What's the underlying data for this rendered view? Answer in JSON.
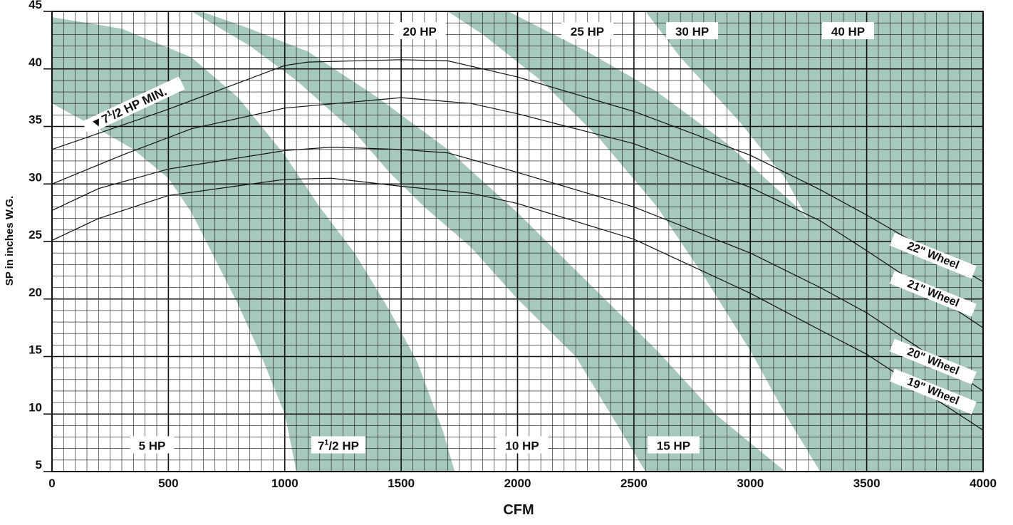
{
  "chart_data": {
    "type": "line",
    "xlabel": "CFM",
    "ylabel": "SP in inches W.G.",
    "xlim": [
      0,
      4000
    ],
    "ylim": [
      5,
      45
    ],
    "x_ticks": [
      0,
      500,
      1000,
      1500,
      2000,
      2500,
      3000,
      3500,
      4000
    ],
    "y_ticks": [
      5,
      10,
      15,
      20,
      25,
      30,
      35,
      40,
      45
    ],
    "grid": true,
    "band_color": "#a7c8be",
    "series": [
      {
        "name": "22\" Wheel",
        "label_x": 3780,
        "label_y": 23.5,
        "label_angle": 22,
        "points": [
          [
            0,
            33
          ],
          [
            500,
            36.5
          ],
          [
            1000,
            40.3
          ],
          [
            1100,
            40.6
          ],
          [
            1500,
            40.8
          ],
          [
            1700,
            40.7
          ],
          [
            2000,
            39.3
          ],
          [
            2500,
            36.3
          ],
          [
            3000,
            32.5
          ],
          [
            3300,
            29.5
          ],
          [
            3500,
            27.3
          ],
          [
            4000,
            21.5
          ]
        ]
      },
      {
        "name": "21\" Wheel",
        "label_x": 3780,
        "label_y": 20.2,
        "label_angle": 22,
        "points": [
          [
            0,
            30
          ],
          [
            300,
            32.5
          ],
          [
            600,
            34.8
          ],
          [
            1000,
            36.6
          ],
          [
            1500,
            37.5
          ],
          [
            1800,
            37
          ],
          [
            2000,
            36.1
          ],
          [
            2500,
            33.5
          ],
          [
            3000,
            29.7
          ],
          [
            3300,
            26.8
          ],
          [
            3500,
            24.2
          ],
          [
            4000,
            17.5
          ]
        ]
      },
      {
        "name": "20\" Wheel",
        "label_x": 3780,
        "label_y": 14.3,
        "label_angle": 22,
        "points": [
          [
            0,
            27.7
          ],
          [
            200,
            29.6
          ],
          [
            500,
            31.3
          ],
          [
            1000,
            32.9
          ],
          [
            1200,
            33.2
          ],
          [
            1500,
            33
          ],
          [
            1700,
            32.7
          ],
          [
            2000,
            31
          ],
          [
            2500,
            28
          ],
          [
            3000,
            24
          ],
          [
            3300,
            21
          ],
          [
            3500,
            18.8
          ],
          [
            4000,
            12
          ]
        ]
      },
      {
        "name": "19\" Wheel",
        "label_x": 3780,
        "label_y": 11.7,
        "label_angle": 22,
        "points": [
          [
            0,
            25.1
          ],
          [
            200,
            27
          ],
          [
            500,
            29
          ],
          [
            1000,
            30.4
          ],
          [
            1200,
            30.5
          ],
          [
            1500,
            29.8
          ],
          [
            1800,
            29.2
          ],
          [
            2000,
            28.3
          ],
          [
            2500,
            25.2
          ],
          [
            3000,
            20.5
          ],
          [
            3300,
            17.3
          ],
          [
            3500,
            15.2
          ],
          [
            4000,
            8.6
          ]
        ]
      }
    ],
    "hp_bands": [
      {
        "name": "7½ HP",
        "outer": [
          [
            0,
            44.5
          ],
          [
            300,
            43.5
          ],
          [
            600,
            41
          ],
          [
            800,
            37.5
          ],
          [
            1000,
            32.5
          ],
          [
            1150,
            28
          ],
          [
            1300,
            24
          ],
          [
            1450,
            19
          ],
          [
            1570,
            14.5
          ],
          [
            1680,
            8.5
          ],
          [
            1730,
            5
          ]
        ],
        "inner": [
          [
            1050,
            5
          ],
          [
            1000,
            10
          ],
          [
            900,
            15
          ],
          [
            800,
            19.5
          ],
          [
            700,
            23.5
          ],
          [
            600,
            27.5
          ],
          [
            500,
            30.5
          ],
          [
            350,
            33
          ],
          [
            180,
            35
          ],
          [
            0,
            37
          ]
        ]
      },
      {
        "name": "15 HP",
        "outer": [
          [
            640,
            45
          ],
          [
            850,
            43.5
          ],
          [
            1100,
            41.5
          ],
          [
            1400,
            37.5
          ],
          [
            1700,
            33
          ],
          [
            2000,
            27.5
          ],
          [
            2300,
            21.5
          ],
          [
            2600,
            15.5
          ],
          [
            2850,
            10
          ],
          [
            3150,
            5
          ]
        ],
        "inner": [
          [
            2550,
            5
          ],
          [
            2400,
            10
          ],
          [
            2250,
            15
          ],
          [
            2000,
            20
          ],
          [
            1800,
            24.5
          ],
          [
            1600,
            28
          ],
          [
            1450,
            31
          ],
          [
            1300,
            34.5
          ],
          [
            1050,
            39
          ],
          [
            850,
            42
          ],
          [
            600,
            45
          ]
        ]
      },
      {
        "name": "30 HP",
        "outer": [
          [
            1960,
            45
          ],
          [
            2300,
            41.5
          ],
          [
            2600,
            38
          ],
          [
            2900,
            33.5
          ],
          [
            3200,
            28
          ],
          [
            3450,
            22.5
          ],
          [
            3700,
            15.5
          ],
          [
            3850,
            10
          ],
          [
            3950,
            5
          ]
        ],
        "inner": [
          [
            3300,
            5
          ],
          [
            3150,
            10
          ],
          [
            3000,
            15.5
          ],
          [
            2800,
            22
          ],
          [
            2600,
            28
          ],
          [
            2350,
            34
          ],
          [
            2100,
            39
          ],
          [
            1850,
            43
          ],
          [
            1700,
            45
          ]
        ]
      },
      {
        "name": "40 HP",
        "outer": [
          [
            4000,
            45
          ],
          [
            4000,
            5
          ]
        ],
        "inner": [
          [
            3800,
            5
          ],
          [
            3650,
            10
          ],
          [
            3550,
            14
          ],
          [
            3430,
            20
          ],
          [
            3300,
            25
          ],
          [
            3150,
            30.5
          ],
          [
            2950,
            35.5
          ],
          [
            2700,
            41
          ],
          [
            2550,
            45
          ]
        ]
      }
    ],
    "annotations": [
      {
        "text": "20 HP",
        "x": 1580,
        "y": 43.2
      },
      {
        "text": "25 HP",
        "x": 2300,
        "y": 43.2
      },
      {
        "text": "30 HP",
        "x": 2750,
        "y": 43.2
      },
      {
        "text": "40 HP",
        "x": 3420,
        "y": 43.2
      },
      {
        "text": "5 HP",
        "x": 430,
        "y": 7.2
      },
      {
        "text": "7",
        "sup": "1",
        "sub": "/2 HP",
        "x": 1230,
        "y": 7.2
      },
      {
        "text": "10 HP",
        "x": 2020,
        "y": 7.2
      },
      {
        "text": "15 HP",
        "x": 2670,
        "y": 7.2
      }
    ],
    "min_label": {
      "marker": "▼",
      "text": "7",
      "sup": "1",
      "rest": "/2 HP MIN.",
      "x": 175,
      "y": 34.9,
      "angle": -25
    }
  }
}
